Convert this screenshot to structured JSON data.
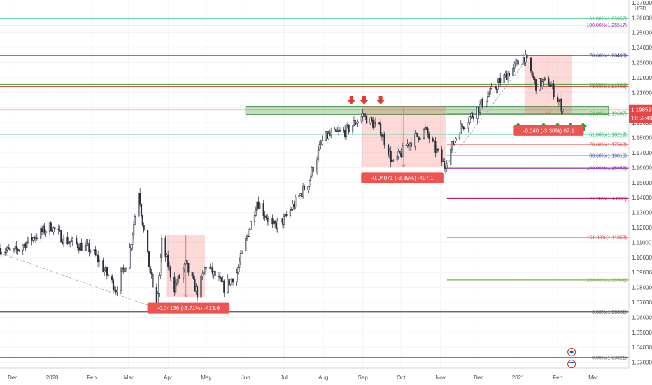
{
  "chart_data": {
    "type": "candlestick",
    "instrument_unit": "USD",
    "y_axis": {
      "ylim": [
        1.0261,
        1.2718
      ],
      "ticks": [
        1.03,
        1.04,
        1.05,
        1.06,
        1.07,
        1.08,
        1.09,
        1.1,
        1.11,
        1.12,
        1.13,
        1.14,
        1.15,
        1.16,
        1.17,
        1.18,
        1.19,
        1.2,
        1.21,
        1.22,
        1.23,
        1.24,
        1.25,
        1.26
      ],
      "tick_labels": [
        "1.03000",
        "1.04000",
        "1.05000",
        "1.06000",
        "1.07000",
        "1.08000",
        "1.09000",
        "1.10000",
        "1.11000",
        "1.12000",
        "1.13000",
        "1.14000",
        "1.15000",
        "1.16000",
        "1.17000",
        "1.18000",
        "1.19000",
        "1.20000",
        "1.21000",
        "1.22000",
        "1.23000",
        "1.24000",
        "1.25000",
        "1.26000"
      ],
      "top_label": "1.27000"
    },
    "x_axis": {
      "xlim": [
        "2019-11-21",
        "2021-03-29"
      ],
      "ticks": [
        {
          "date": "2019-12-01",
          "label": "Dec"
        },
        {
          "date": "2020-01-01",
          "label": "2020"
        },
        {
          "date": "2020-02-01",
          "label": "Feb"
        },
        {
          "date": "2020-03-01",
          "label": "Mar"
        },
        {
          "date": "2020-04-01",
          "label": "Apr"
        },
        {
          "date": "2020-05-01",
          "label": "May"
        },
        {
          "date": "2020-06-01",
          "label": "Jun"
        },
        {
          "date": "2020-07-01",
          "label": "Jul"
        },
        {
          "date": "2020-08-01",
          "label": "Aug"
        },
        {
          "date": "2020-09-01",
          "label": "Sep"
        },
        {
          "date": "2020-10-01",
          "label": "Oct"
        },
        {
          "date": "2020-11-01",
          "label": "Nov"
        },
        {
          "date": "2020-12-01",
          "label": "Dec"
        },
        {
          "date": "2021-01-01",
          "label": "2021"
        },
        {
          "date": "2021-02-01",
          "label": "Feb"
        },
        {
          "date": "2021-03-01",
          "label": "Mar"
        }
      ]
    },
    "price_path": [
      [
        "2019-11-21",
        1.106
      ],
      [
        "2019-12-01",
        1.103
      ],
      [
        "2019-12-15",
        1.112
      ],
      [
        "2019-12-31",
        1.121
      ],
      [
        "2020-01-10",
        1.112
      ],
      [
        "2020-01-20",
        1.109
      ],
      [
        "2020-02-01",
        1.105
      ],
      [
        "2020-02-12",
        1.09
      ],
      [
        "2020-02-20",
        1.079
      ],
      [
        "2020-03-01",
        1.1
      ],
      [
        "2020-03-09",
        1.145
      ],
      [
        "2020-03-14",
        1.11
      ],
      [
        "2020-03-23",
        1.066
      ],
      [
        "2020-03-27",
        1.11
      ],
      [
        "2020-04-06",
        1.08
      ],
      [
        "2020-04-15",
        1.095
      ],
      [
        "2020-04-24",
        1.076
      ],
      [
        "2020-05-01",
        1.095
      ],
      [
        "2020-05-15",
        1.08
      ],
      [
        "2020-05-25",
        1.09
      ],
      [
        "2020-06-10",
        1.138
      ],
      [
        "2020-06-22",
        1.12
      ],
      [
        "2020-07-01",
        1.125
      ],
      [
        "2020-07-20",
        1.15
      ],
      [
        "2020-08-01",
        1.18
      ],
      [
        "2020-08-20",
        1.185
      ],
      [
        "2020-09-01",
        1.195
      ],
      [
        "2020-09-15",
        1.185
      ],
      [
        "2020-09-25",
        1.162
      ],
      [
        "2020-10-05",
        1.175
      ],
      [
        "2020-10-20",
        1.185
      ],
      [
        "2020-11-04",
        1.161
      ],
      [
        "2020-11-15",
        1.185
      ],
      [
        "2020-12-01",
        1.2
      ],
      [
        "2020-12-15",
        1.215
      ],
      [
        "2021-01-06",
        1.234
      ],
      [
        "2021-01-15",
        1.215
      ],
      [
        "2021-01-25",
        1.217
      ],
      [
        "2021-02-03",
        1.203
      ],
      [
        "2021-02-05",
        1.1986
      ]
    ],
    "last_price": {
      "label": "1.19859",
      "countdown": "11:59:40",
      "color": "#e54545"
    },
    "fib_levels": [
      {
        "label": "61.80%(1.25957)",
        "price": 1.2596,
        "color": "#3cc48a",
        "x_from": "2019-11-21"
      },
      {
        "label": "100.00%(1.25517)",
        "price": 1.2552,
        "color": "#9c27b0",
        "x_from": "2019-11-21"
      },
      {
        "label": "78.60%(1.23493)",
        "price": 1.2349,
        "color": "#2a2f87",
        "x_from": "2019-11-21"
      },
      {
        "label": "50.00%(1.21548)",
        "price": 1.2155,
        "color": "#4caf50",
        "x_from": "2019-11-21"
      },
      {
        "label": "78.60%(1.21403)",
        "price": 1.214,
        "color": "#e53935",
        "x_from": "2019-11-21"
      },
      {
        "label": "50.00%(1.19607)",
        "price": 1.1961,
        "color": "#4caf50",
        "x_from": "2020-11-06"
      },
      {
        "label": "61.80%(1.18217)",
        "price": 1.1822,
        "color": "#3cc48a",
        "x_from": "2019-11-21"
      },
      {
        "label": "61.80%(1.18219)",
        "price": 1.1822,
        "color": "#3cc48a",
        "x_from": "2020-11-06"
      },
      {
        "label": "78.60%(1.17563)",
        "price": 1.1756,
        "color": "#e53935",
        "x_from": "2020-11-06"
      },
      {
        "label": "88.60%(1.16816)",
        "price": 1.1682,
        "color": "#3f51b5",
        "x_from": "2020-11-06"
      },
      {
        "label": "100.00%(1.15958)",
        "price": 1.1596,
        "color": "#8e24aa",
        "x_from": "2020-11-06"
      },
      {
        "label": "127.20%(1.13935)",
        "price": 1.1394,
        "color": "#c2187a",
        "x_from": "2020-11-06"
      },
      {
        "label": "161.80%(1.11353)",
        "price": 1.1135,
        "color": "#e53935",
        "x_from": "2020-11-06"
      },
      {
        "label": "200.00%(1.08501)",
        "price": 1.085,
        "color": "#7cb342",
        "x_from": "2020-11-06"
      },
      {
        "label": "0.00%(1.06361)",
        "price": 1.0636,
        "color": "#555555",
        "x_from": "2019-11-21"
      },
      {
        "label": "0.00%(1.03321)",
        "price": 1.0332,
        "color": "#555555",
        "x_from": "2019-11-21"
      }
    ],
    "measure_boxes": [
      {
        "x0": "2020-03-31",
        "x1": "2020-04-30",
        "y_top": 1.115,
        "y_bottom": 1.0736,
        "label": "-0.04136 (-3.71%) -413.6",
        "label_at": "2020-04-17",
        "label_price": 1.066
      },
      {
        "x0": "2020-08-31",
        "x1": "2020-11-05",
        "y_top": 1.2011,
        "y_bottom": 1.1604,
        "label": "-0.04071 (-3.39%) -407.1",
        "label_at": "2020-10-02",
        "label_price": 1.153
      },
      {
        "x0": "2021-01-06",
        "x1": "2021-02-12",
        "y_top": 1.235,
        "y_bottom": 1.1955,
        "label": "-0.040 (-3.30%) 07.1",
        "label_at": "2021-01-25",
        "label_price": 1.1845
      }
    ],
    "green_zone": {
      "x0": "2020-06-01",
      "x1": "2021-03-13",
      "y_top": 1.2005,
      "y_bottom": 1.1955
    },
    "down_arrows": [
      "2020-08-23",
      "2020-09-02",
      "2020-09-15"
    ],
    "up_arrows": [
      "2021-01-01",
      "2021-01-21",
      "2021-02-01",
      "2021-02-11",
      "2021-02-21"
    ],
    "dashed_lines": [
      {
        "from": [
          "2019-11-21",
          1.103
        ],
        "to": [
          "2020-03-23",
          1.066
        ]
      },
      {
        "from": [
          "2020-11-04",
          1.16
        ],
        "to": [
          "2021-01-06",
          1.23
        ]
      }
    ]
  }
}
